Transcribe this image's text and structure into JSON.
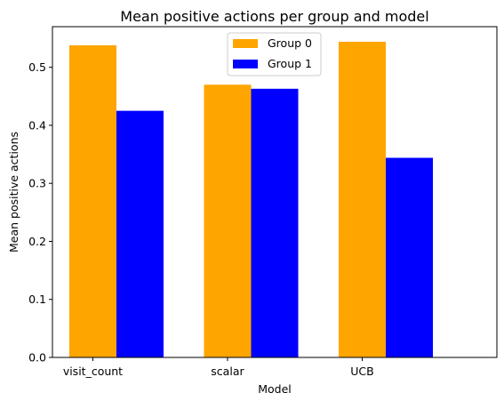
{
  "chart_data": {
    "type": "bar",
    "title": "Mean positive actions per group and model",
    "xlabel": "Model",
    "ylabel": "Mean positive actions",
    "categories": [
      "visit_count",
      "scalar",
      "UCB"
    ],
    "series": [
      {
        "name": "Group 0",
        "color": "#ffa500",
        "values": [
          0.538,
          0.47,
          0.544
        ]
      },
      {
        "name": "Group 1",
        "color": "#0000ff",
        "values": [
          0.425,
          0.463,
          0.344
        ]
      }
    ],
    "ylim": [
      0,
      0.57
    ],
    "yticks": [
      "0.0",
      "0.1",
      "0.2",
      "0.3",
      "0.4",
      "0.5"
    ],
    "grid": false,
    "legend_position": "top-center"
  }
}
